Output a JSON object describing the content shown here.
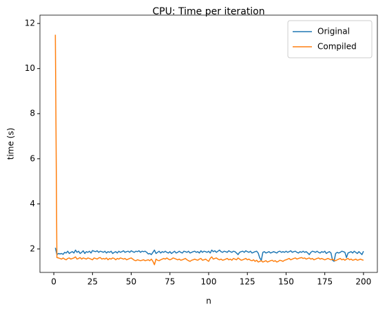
{
  "chart_data": {
    "type": "line",
    "title": "CPU: Time per iteration",
    "x_label": "n",
    "y_label": "time (s)",
    "x": [
      1,
      2,
      3,
      4,
      5,
      6,
      7,
      8,
      9,
      10,
      11,
      12,
      13,
      14,
      15,
      16,
      17,
      18,
      19,
      20,
      21,
      22,
      23,
      24,
      25,
      26,
      27,
      28,
      29,
      30,
      31,
      32,
      33,
      34,
      35,
      36,
      37,
      38,
      39,
      40,
      41,
      42,
      43,
      44,
      45,
      46,
      47,
      48,
      49,
      50,
      51,
      52,
      53,
      54,
      55,
      56,
      57,
      58,
      59,
      60,
      61,
      62,
      63,
      64,
      65,
      66,
      67,
      68,
      69,
      70,
      71,
      72,
      73,
      74,
      75,
      76,
      77,
      78,
      79,
      80,
      81,
      82,
      83,
      84,
      85,
      86,
      87,
      88,
      89,
      90,
      91,
      92,
      93,
      94,
      95,
      96,
      97,
      98,
      99,
      100,
      101,
      102,
      103,
      104,
      105,
      106,
      107,
      108,
      109,
      110,
      111,
      112,
      113,
      114,
      115,
      116,
      117,
      118,
      119,
      120,
      121,
      122,
      123,
      124,
      125,
      126,
      127,
      128,
      129,
      130,
      131,
      132,
      133,
      134,
      135,
      136,
      137,
      138,
      139,
      140,
      141,
      142,
      143,
      144,
      145,
      146,
      147,
      148,
      149,
      150,
      151,
      152,
      153,
      154,
      155,
      156,
      157,
      158,
      159,
      160,
      161,
      162,
      163,
      164,
      165,
      166,
      167,
      168,
      169,
      170,
      171,
      172,
      173,
      174,
      175,
      176,
      177,
      178,
      179,
      180,
      181,
      182,
      183,
      184,
      185,
      186,
      187,
      188,
      189,
      190,
      191,
      192,
      193,
      194,
      195,
      196,
      197,
      198,
      199,
      200
    ],
    "series": [
      {
        "name": "Original",
        "color": "#1f77b4",
        "values": [
          2.05,
          1.75,
          1.8,
          1.78,
          1.8,
          1.76,
          1.85,
          1.82,
          1.9,
          1.8,
          1.85,
          1.88,
          1.82,
          1.95,
          1.85,
          1.9,
          1.8,
          1.85,
          1.92,
          1.8,
          1.88,
          1.85,
          1.9,
          1.82,
          1.93,
          1.9,
          1.88,
          1.92,
          1.85,
          1.9,
          1.88,
          1.85,
          1.9,
          1.82,
          1.88,
          1.85,
          1.9,
          1.8,
          1.85,
          1.88,
          1.82,
          1.9,
          1.85,
          1.88,
          1.92,
          1.85,
          1.88,
          1.9,
          1.85,
          1.92,
          1.88,
          1.85,
          1.9,
          1.88,
          1.92,
          1.85,
          1.9,
          1.88,
          1.9,
          1.85,
          1.78,
          1.8,
          1.75,
          1.85,
          1.95,
          1.8,
          1.85,
          1.9,
          1.82,
          1.88,
          1.85,
          1.9,
          1.85,
          1.82,
          1.88,
          1.8,
          1.85,
          1.9,
          1.82,
          1.85,
          1.9,
          1.85,
          1.82,
          1.9,
          1.88,
          1.85,
          1.9,
          1.82,
          1.85,
          1.88,
          1.9,
          1.85,
          1.88,
          1.82,
          1.92,
          1.85,
          1.9,
          1.88,
          1.85,
          1.9,
          1.82,
          1.95,
          1.88,
          1.92,
          1.85,
          1.9,
          1.95,
          1.88,
          1.85,
          1.9,
          1.88,
          1.85,
          1.92,
          1.88,
          1.85,
          1.9,
          1.88,
          1.82,
          1.75,
          1.85,
          1.88,
          1.9,
          1.85,
          1.92,
          1.88,
          1.85,
          1.9,
          1.82,
          1.85,
          1.88,
          1.9,
          1.82,
          1.6,
          1.5,
          1.85,
          1.88,
          1.82,
          1.85,
          1.88,
          1.82,
          1.85,
          1.88,
          1.85,
          1.82,
          1.88,
          1.9,
          1.85,
          1.88,
          1.85,
          1.9,
          1.85,
          1.88,
          1.92,
          1.85,
          1.88,
          1.9,
          1.85,
          1.82,
          1.88,
          1.85,
          1.9,
          1.85,
          1.88,
          1.82,
          1.75,
          1.85,
          1.9,
          1.88,
          1.85,
          1.9,
          1.85,
          1.82,
          1.88,
          1.85,
          1.9,
          1.8,
          1.85,
          1.88,
          1.82,
          1.5,
          1.45,
          1.8,
          1.85,
          1.82,
          1.85,
          1.9,
          1.88,
          1.85,
          1.62,
          1.82,
          1.85,
          1.88,
          1.82,
          1.9,
          1.85,
          1.8,
          1.88,
          1.82,
          1.75,
          1.9
        ]
      },
      {
        "name": "Compiled",
        "color": "#ff7f0e",
        "values": [
          11.5,
          1.62,
          1.6,
          1.58,
          1.55,
          1.6,
          1.55,
          1.52,
          1.58,
          1.6,
          1.55,
          1.58,
          1.6,
          1.65,
          1.55,
          1.58,
          1.62,
          1.55,
          1.6,
          1.58,
          1.55,
          1.6,
          1.58,
          1.55,
          1.52,
          1.6,
          1.58,
          1.55,
          1.6,
          1.62,
          1.55,
          1.58,
          1.55,
          1.6,
          1.52,
          1.58,
          1.55,
          1.6,
          1.58,
          1.52,
          1.58,
          1.55,
          1.6,
          1.58,
          1.55,
          1.58,
          1.52,
          1.55,
          1.58,
          1.6,
          1.55,
          1.5,
          1.48,
          1.52,
          1.5,
          1.48,
          1.5,
          1.52,
          1.48,
          1.5,
          1.52,
          1.48,
          1.55,
          1.45,
          1.3,
          1.55,
          1.5,
          1.48,
          1.52,
          1.55,
          1.58,
          1.55,
          1.6,
          1.55,
          1.52,
          1.55,
          1.6,
          1.58,
          1.55,
          1.52,
          1.55,
          1.5,
          1.52,
          1.55,
          1.58,
          1.52,
          1.48,
          1.45,
          1.5,
          1.52,
          1.55,
          1.52,
          1.5,
          1.55,
          1.58,
          1.5,
          1.52,
          1.55,
          1.5,
          1.45,
          1.58,
          1.65,
          1.55,
          1.58,
          1.6,
          1.55,
          1.52,
          1.55,
          1.5,
          1.52,
          1.55,
          1.58,
          1.52,
          1.55,
          1.5,
          1.58,
          1.55,
          1.52,
          1.6,
          1.55,
          1.5,
          1.52,
          1.55,
          1.58,
          1.52,
          1.55,
          1.5,
          1.48,
          1.52,
          1.45,
          1.5,
          1.42,
          1.45,
          1.48,
          1.42,
          1.45,
          1.48,
          1.42,
          1.45,
          1.48,
          1.5,
          1.45,
          1.48,
          1.42,
          1.45,
          1.5,
          1.48,
          1.45,
          1.5,
          1.52,
          1.55,
          1.58,
          1.52,
          1.55,
          1.58,
          1.6,
          1.55,
          1.58,
          1.6,
          1.62,
          1.58,
          1.6,
          1.55,
          1.58,
          1.6,
          1.55,
          1.58,
          1.52,
          1.55,
          1.58,
          1.6,
          1.55,
          1.58,
          1.55,
          1.52,
          1.55,
          1.58,
          1.55,
          1.52,
          1.55,
          1.5,
          1.48,
          1.52,
          1.55,
          1.58,
          1.52,
          1.55,
          1.5,
          1.55,
          1.58,
          1.52,
          1.55,
          1.5,
          1.52,
          1.55,
          1.5,
          1.52,
          1.55,
          1.52,
          1.5
        ]
      }
    ],
    "xlim": [
      -8.95,
      208.95
    ],
    "ylim": [
      0.96,
      12.37
    ],
    "xticks": [
      0,
      25,
      50,
      75,
      100,
      125,
      150,
      175,
      200
    ],
    "yticks": [
      2,
      4,
      6,
      8,
      10,
      12
    ],
    "grid": false,
    "legend": "upper right"
  }
}
